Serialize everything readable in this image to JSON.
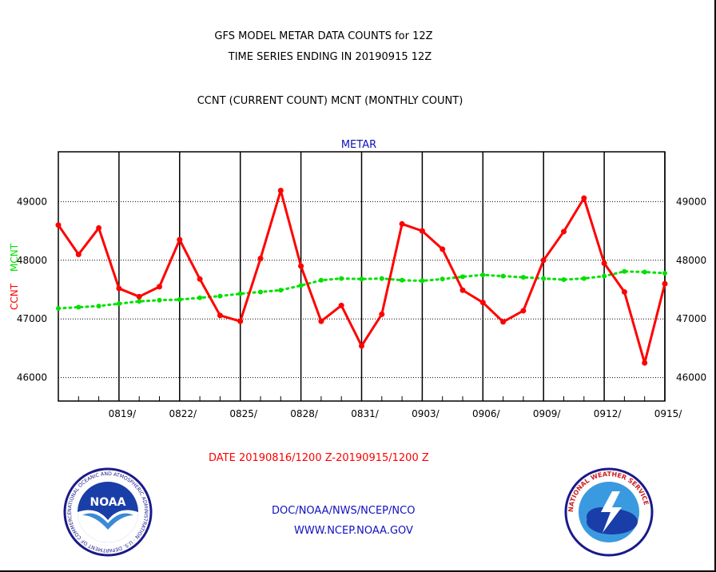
{
  "titles": {
    "line1": "GFS MODEL METAR DATA COUNTS for 12Z",
    "line2": "TIME SERIES ENDING IN 20190915 12Z",
    "line3": "CCNT (CURRENT COUNT) MCNT (MONTHLY COUNT)"
  },
  "footer": {
    "date_range": "DATE 20190816/1200 Z-20190915/1200 Z",
    "org": "DOC/NOAA/NWS/NCEP/NCO",
    "url": "WWW.NCEP.NOAA.GOV"
  },
  "logos": {
    "noaa_text": "NOAA",
    "noaa_ring_text": "NATIONAL OCEANIC AND ATMOSPHERIC ADMINISTRATION · U.S. DEPARTMENT OF COMMERCE ·",
    "nws_ring_text": "NATIONAL WEATHER SERVICE"
  },
  "colors": {
    "ccnt": "#ff0000",
    "mcnt": "#00e000",
    "label_blue": "#1010c0",
    "date_red": "#ff0000"
  },
  "chart_data": {
    "type": "line",
    "title": "METAR",
    "ylabel": "CCNT",
    "ylabel2": "MCNT",
    "ylim": [
      45600,
      49850
    ],
    "yticks": [
      46000,
      47000,
      48000,
      49000
    ],
    "ytick_labels": [
      "46000",
      "47000",
      "48000",
      "49000"
    ],
    "xlim": [
      "20190816",
      "20190915"
    ],
    "xticks": [
      "20190819",
      "20190822",
      "20190825",
      "20190828",
      "20190831",
      "20190903",
      "20190906",
      "20190909",
      "20190912",
      "20190915"
    ],
    "xtick_labels": [
      "0819/",
      "0822/",
      "0825/",
      "0828/",
      "0831/",
      "0903/",
      "0906/",
      "0909/",
      "0912/",
      "0915/"
    ],
    "grid": true,
    "x": [
      "20190816",
      "20190817",
      "20190818",
      "20190819",
      "20190820",
      "20190821",
      "20190822",
      "20190823",
      "20190824",
      "20190825",
      "20190826",
      "20190827",
      "20190828",
      "20190829",
      "20190830",
      "20190831",
      "20190901",
      "20190902",
      "20190903",
      "20190904",
      "20190905",
      "20190906",
      "20190907",
      "20190908",
      "20190909",
      "20190910",
      "20190911",
      "20190912",
      "20190913",
      "20190914",
      "20190915"
    ],
    "series": [
      {
        "name": "CCNT",
        "values": [
          48600,
          48100,
          48550,
          47520,
          47380,
          47550,
          48350,
          47680,
          47060,
          46960,
          48030,
          49190,
          47900,
          46960,
          47230,
          46540,
          47080,
          48620,
          48500,
          48190,
          47490,
          47280,
          46950,
          47140,
          48000,
          48490,
          49060,
          47950,
          47460,
          46250,
          47600
        ]
      },
      {
        "name": "MCNT",
        "values": [
          47180,
          47200,
          47220,
          47260,
          47300,
          47320,
          47330,
          47360,
          47390,
          47430,
          47460,
          47490,
          47570,
          47660,
          47690,
          47680,
          47690,
          47660,
          47650,
          47680,
          47720,
          47750,
          47730,
          47710,
          47690,
          47670,
          47690,
          47730,
          47810,
          47800,
          47780
        ]
      }
    ]
  }
}
